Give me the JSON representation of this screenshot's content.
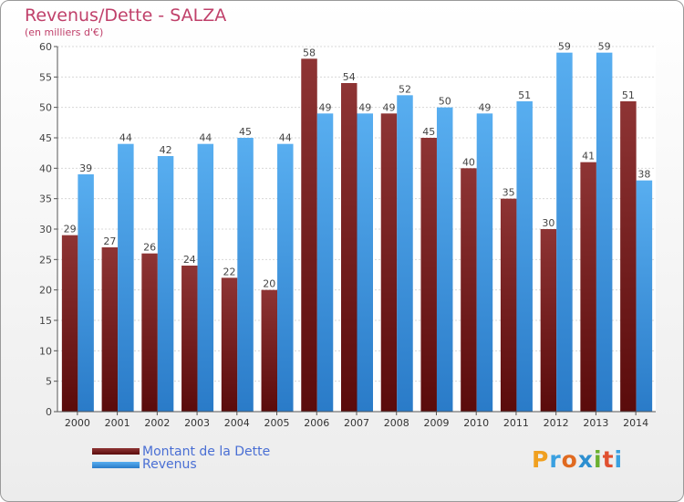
{
  "title": "Revenus/Dette - SALZA",
  "subtitle": "(en milliers d'€)",
  "logo_text": "Proxiti",
  "colors": {
    "dette": "#7a1e1e",
    "revenus": "#3a8fdc",
    "title": "#c0406a",
    "legend_text": "#4a6fd4"
  },
  "chart_data": {
    "type": "bar",
    "title": "Revenus/Dette - SALZA",
    "subtitle": "(en milliers d'€)",
    "categories": [
      "2000",
      "2001",
      "2002",
      "2003",
      "2004",
      "2005",
      "2006",
      "2007",
      "2008",
      "2009",
      "2010",
      "2011",
      "2012",
      "2013",
      "2014"
    ],
    "series": [
      {
        "name": "Montant de la Dette",
        "values": [
          29,
          27,
          26,
          24,
          22,
          20,
          58,
          54,
          49,
          45,
          40,
          35,
          30,
          41,
          51
        ]
      },
      {
        "name": "Revenus",
        "values": [
          39,
          44,
          42,
          44,
          45,
          44,
          49,
          49,
          52,
          50,
          49,
          51,
          59,
          59,
          38
        ]
      }
    ],
    "ylim": [
      0,
      60
    ],
    "yticks": [
      0,
      5,
      10,
      15,
      20,
      25,
      30,
      35,
      40,
      45,
      50,
      55,
      60
    ],
    "grid": true,
    "legend": "bottom-left",
    "data_labels": true
  }
}
